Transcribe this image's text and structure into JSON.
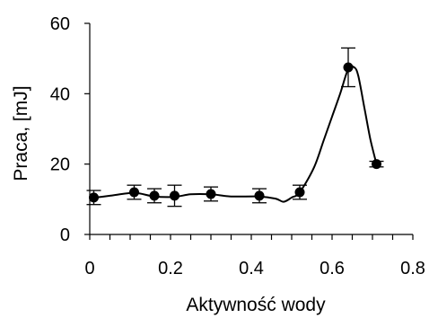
{
  "chart_data": {
    "type": "scatter",
    "title": "",
    "xlabel": "Aktywność wody",
    "ylabel": "Praca, [mJ]",
    "xlim": [
      0,
      0.8
    ],
    "ylim": [
      0,
      60
    ],
    "xticks": [
      0,
      0.2,
      0.4,
      0.6,
      0.8
    ],
    "yticks": [
      0,
      20,
      40,
      60
    ],
    "xtick_labels": [
      "0",
      "0.2",
      "0.4",
      "0.6",
      "0.8"
    ],
    "ytick_labels": [
      "0",
      "20",
      "40",
      "60"
    ],
    "x_minor_step": 0.05,
    "grid": false,
    "legend": "none",
    "marker_color": "#000000",
    "series": [
      {
        "points": [
          {
            "x": 0.01,
            "y": 10.5,
            "err": 2.0
          },
          {
            "x": 0.11,
            "y": 12.0,
            "err": 2.0
          },
          {
            "x": 0.16,
            "y": 11.0,
            "err": 2.0
          },
          {
            "x": 0.21,
            "y": 11.0,
            "err": 3.0
          },
          {
            "x": 0.3,
            "y": 11.5,
            "err": 2.0
          },
          {
            "x": 0.42,
            "y": 11.0,
            "err": 2.0
          },
          {
            "x": 0.52,
            "y": 12.0,
            "err": 2.0
          },
          {
            "x": 0.64,
            "y": 47.5,
            "err": 5.5
          },
          {
            "x": 0.71,
            "y": 20.0,
            "err": 0.8
          }
        ],
        "fit_line": [
          [
            0.0,
            10.3
          ],
          [
            0.05,
            11.0
          ],
          [
            0.11,
            11.8
          ],
          [
            0.16,
            10.8
          ],
          [
            0.21,
            10.7
          ],
          [
            0.25,
            11.4
          ],
          [
            0.3,
            11.4
          ],
          [
            0.35,
            10.8
          ],
          [
            0.42,
            10.8
          ],
          [
            0.46,
            10.2
          ],
          [
            0.48,
            9.3
          ],
          [
            0.5,
            10.5
          ],
          [
            0.52,
            12.0
          ],
          [
            0.555,
            19.0
          ],
          [
            0.58,
            27.0
          ],
          [
            0.6,
            33.5
          ],
          [
            0.62,
            40.0
          ],
          [
            0.64,
            47.0
          ],
          [
            0.655,
            47.5
          ],
          [
            0.665,
            45.0
          ],
          [
            0.68,
            36.0
          ],
          [
            0.695,
            27.0
          ],
          [
            0.71,
            20.0
          ]
        ]
      }
    ]
  }
}
